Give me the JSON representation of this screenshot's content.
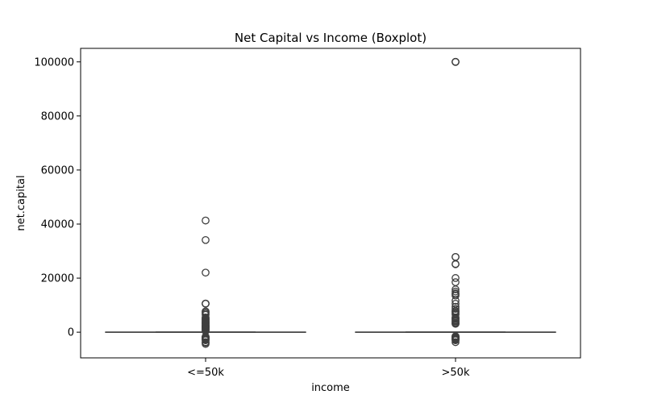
{
  "chart_data": {
    "type": "box",
    "title": "Net Capital vs Income (Boxplot)",
    "xlabel": "income",
    "ylabel": "net.capital",
    "ylim": [
      -9500,
      105000
    ],
    "yticks": [
      0,
      20000,
      40000,
      60000,
      80000,
      100000
    ],
    "ytick_labels": [
      "0",
      "20000",
      "40000",
      "60000",
      "80000",
      "100000"
    ],
    "categories": [
      "<=50k",
      ">50k"
    ],
    "grid": false,
    "legend": "none",
    "colors": {
      "box_line": "#3f3f3f",
      "frame": "#000000",
      "outlier_stroke": "#3f3f3f"
    },
    "boxes": [
      {
        "category": "<=50k",
        "q1": 0,
        "median": 0,
        "q3": 0,
        "whisker_low": 0,
        "whisker_high": 0,
        "outliers": [
          41310,
          34095,
          22040,
          10605,
          10520,
          10566,
          7688,
          7298,
          6849,
          6418,
          5455,
          5178,
          5013,
          4787,
          4650,
          4386,
          4101,
          3908,
          3674,
          3464,
          3325,
          3103,
          2829,
          2597,
          2414,
          2354,
          2174,
          2105,
          1980,
          1876,
          1721,
          1590,
          1408,
          1258,
          1092,
          914,
          594,
          401,
          -1602,
          -1719,
          -1876,
          -1980,
          -2001,
          -2179,
          -2339,
          -2457,
          -2603,
          -2824,
          -3004,
          -3683,
          -3900,
          -4356
        ]
      },
      {
        "category": ">50k",
        "q1": 0,
        "median": 0,
        "q3": 0,
        "whisker_low": 0,
        "whisker_high": 0,
        "outliers": [
          99999,
          99999,
          99999,
          27828,
          27828,
          25236,
          25124,
          20051,
          18481,
          15831,
          15024,
          14344,
          14084,
          13550,
          11678,
          10520,
          9386,
          8614,
          7896,
          7688,
          7298,
          6849,
          6497,
          5455,
          5178,
          5013,
          4787,
          4386,
          4064,
          3908,
          3464,
          3137,
          3103,
          -1485,
          -1564,
          -1740,
          -1848,
          -1887,
          -1902,
          -1977,
          -2001,
          -2258,
          -2377,
          -2392,
          -2415,
          -2444,
          -2472,
          -2559,
          -2824,
          -3004,
          -3683
        ]
      }
    ]
  }
}
